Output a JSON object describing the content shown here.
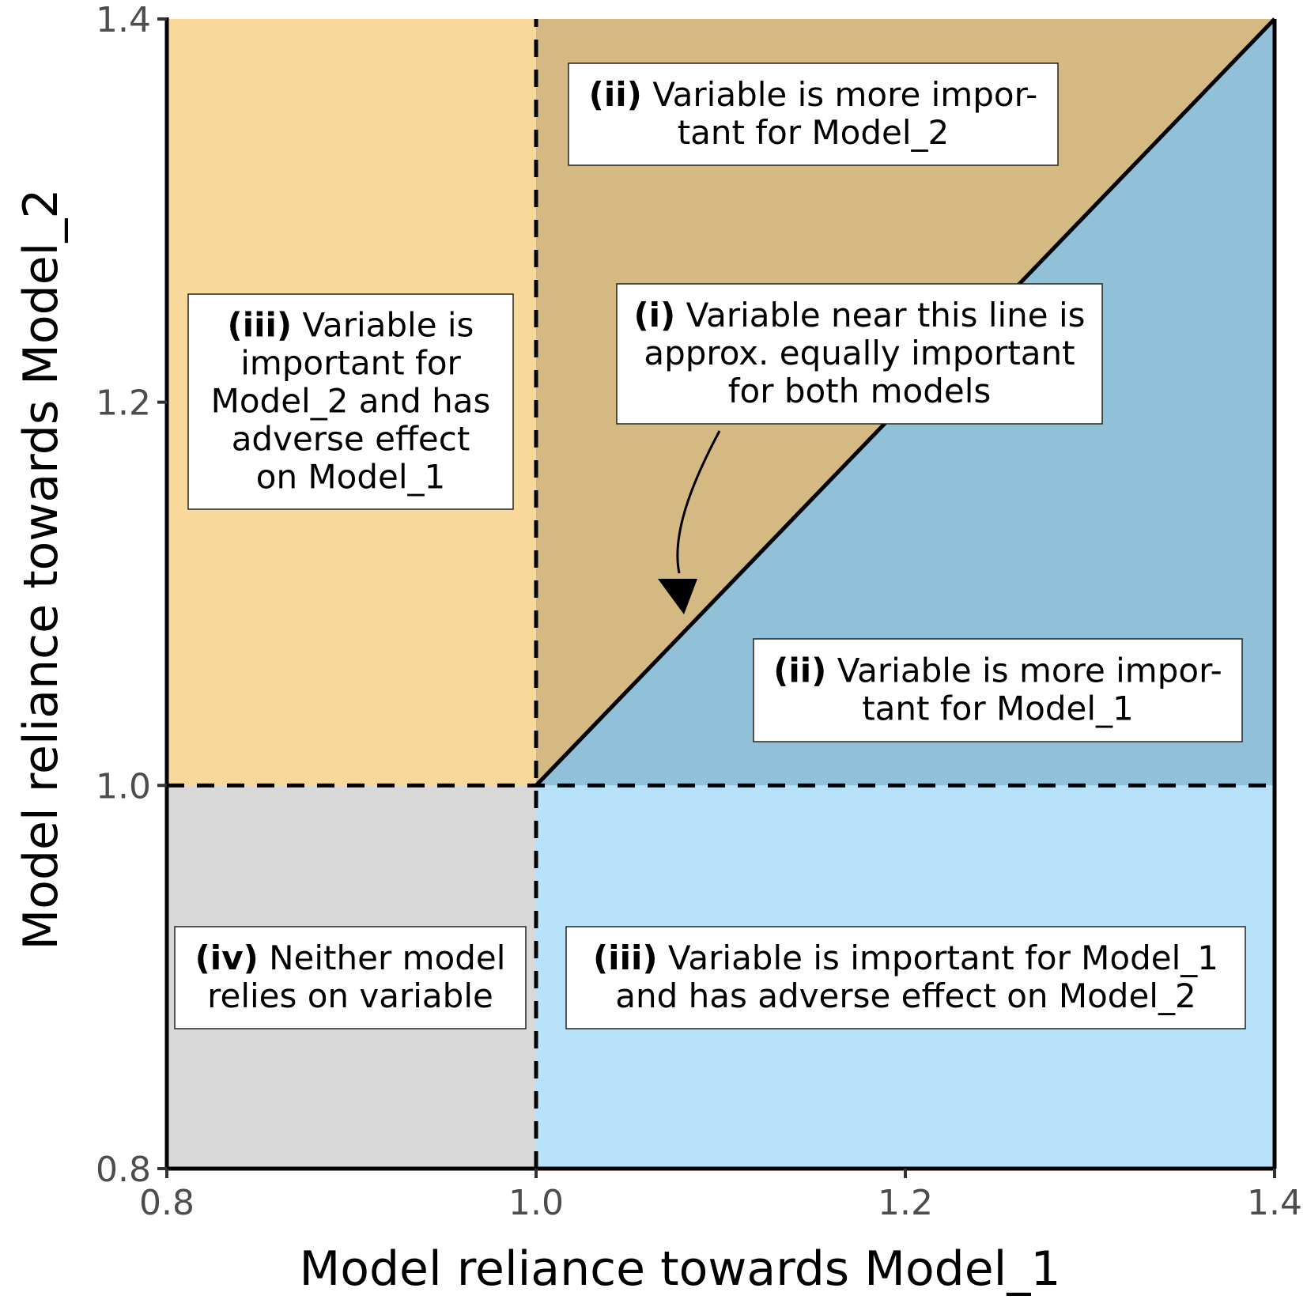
{
  "chart_data": {
    "type": "area",
    "xlabel": "Model reliance towards Model_1",
    "ylabel": "Model reliance towards Model_2",
    "xlim": [
      0.8,
      1.4
    ],
    "ylim": [
      0.8,
      1.4
    ],
    "x_ticks": [
      "0.8",
      "1.0",
      "1.2",
      "1.4"
    ],
    "y_ticks": [
      "0.8",
      "1.0",
      "1.2",
      "1.4"
    ],
    "reference_lines": {
      "vertical_dashed_x": 1.0,
      "horizontal_dashed_y": 1.0,
      "diagonal": [
        [
          1.0,
          1.0
        ],
        [
          1.4,
          1.4
        ]
      ]
    },
    "regions": [
      {
        "name": "top-left",
        "color": "#f9d89c",
        "polygon": [
          [
            0.8,
            1.0
          ],
          [
            1.0,
            1.0
          ],
          [
            1.0,
            1.4
          ],
          [
            0.8,
            1.4
          ]
        ]
      },
      {
        "name": "top-middle",
        "color": "#d4b982",
        "polygon": [
          [
            1.0,
            1.0
          ],
          [
            1.4,
            1.4
          ],
          [
            1.0,
            1.4
          ]
        ]
      },
      {
        "name": "right-diagonal",
        "color": "#91c1d8",
        "polygon": [
          [
            1.0,
            1.0
          ],
          [
            1.4,
            1.0
          ],
          [
            1.4,
            1.4
          ]
        ]
      },
      {
        "name": "bottom-left",
        "color": "#d9d9d9",
        "polygon": [
          [
            0.8,
            0.8
          ],
          [
            1.0,
            0.8
          ],
          [
            1.0,
            1.0
          ],
          [
            0.8,
            1.0
          ]
        ]
      },
      {
        "name": "bottom-right",
        "color": "#b8e2fa",
        "polygon": [
          [
            1.0,
            0.8
          ],
          [
            1.4,
            0.8
          ],
          [
            1.4,
            1.0
          ],
          [
            1.0,
            1.0
          ]
        ]
      }
    ],
    "annotations": [
      {
        "id": "ii-model2",
        "lines": [
          [
            {
              "b": true,
              "t": "(ii)"
            },
            {
              "b": false,
              "t": " Variable is more impor-"
            }
          ],
          [
            {
              "b": false,
              "t": "tant for Model_2"
            }
          ]
        ]
      },
      {
        "id": "i-diagonal",
        "lines": [
          [
            {
              "b": true,
              "t": "(i)"
            },
            {
              "b": false,
              "t": " Variable near this line is"
            }
          ],
          [
            {
              "b": false,
              "t": "approx. equally important"
            }
          ],
          [
            {
              "b": false,
              "t": "for both models"
            }
          ]
        ]
      },
      {
        "id": "iii-model2",
        "lines": [
          [
            {
              "b": true,
              "t": "(iii)"
            },
            {
              "b": false,
              "t": " Variable is"
            }
          ],
          [
            {
              "b": false,
              "t": "important for"
            }
          ],
          [
            {
              "b": false,
              "t": "Model_2 and has"
            }
          ],
          [
            {
              "b": false,
              "t": "adverse effect"
            }
          ],
          [
            {
              "b": false,
              "t": "on Model_1"
            }
          ]
        ]
      },
      {
        "id": "ii-model1",
        "lines": [
          [
            {
              "b": true,
              "t": "(ii)"
            },
            {
              "b": false,
              "t": " Variable is more impor-"
            }
          ],
          [
            {
              "b": false,
              "t": "tant for Model_1"
            }
          ]
        ]
      },
      {
        "id": "iv-neither",
        "lines": [
          [
            {
              "b": true,
              "t": "(iv)"
            },
            {
              "b": false,
              "t": " Neither model"
            }
          ],
          [
            {
              "b": false,
              "t": "relies on variable"
            }
          ]
        ]
      },
      {
        "id": "iii-model1",
        "lines": [
          [
            {
              "b": true,
              "t": "(iii)"
            },
            {
              "b": false,
              "t": " Variable is important for Model_1"
            }
          ],
          [
            {
              "b": false,
              "t": "and has adverse effect on Model_2"
            }
          ]
        ]
      }
    ]
  }
}
